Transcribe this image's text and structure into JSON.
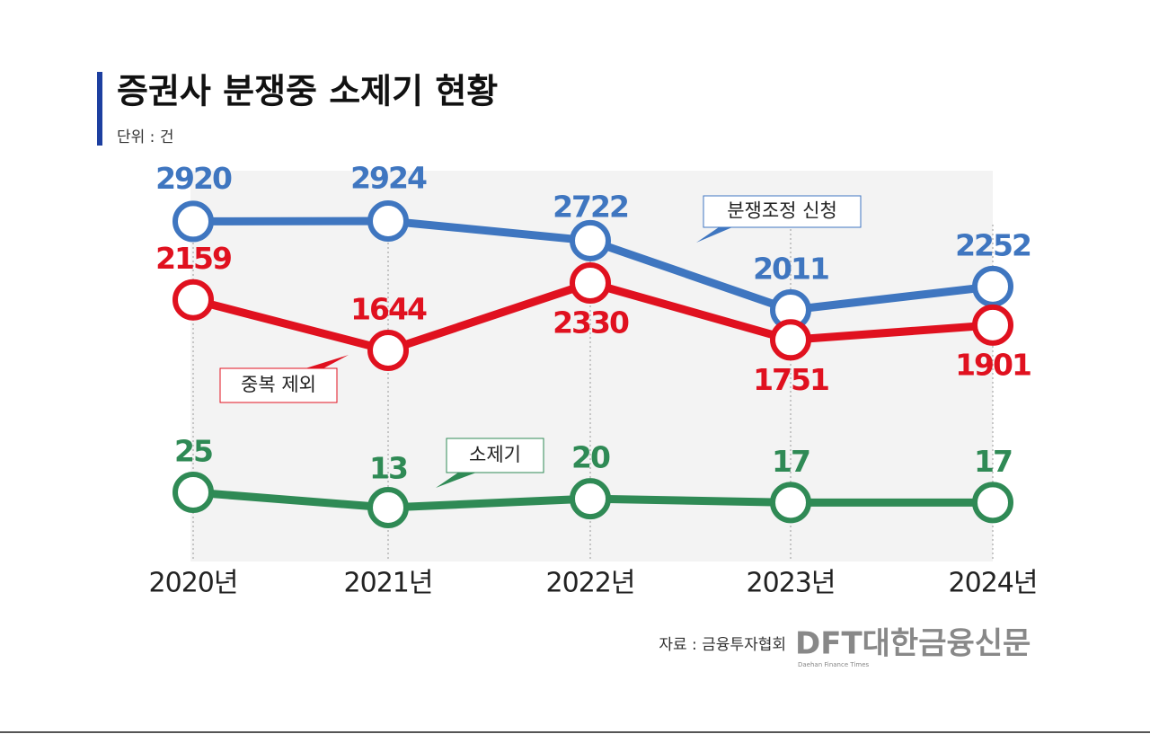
{
  "chart_data": {
    "type": "line",
    "title": "증권사 분쟁중 소제기 현황",
    "subtitle": "단위 : 건",
    "categories": [
      "2020년",
      "2021년",
      "2022년",
      "2023년",
      "2024년"
    ],
    "series": [
      {
        "name": "분쟁조정 신청",
        "color": "#3f76c0",
        "values": [
          2920,
          2924,
          2722,
          2011,
          2252
        ]
      },
      {
        "name": "중복 제외",
        "color": "#e0111f",
        "values": [
          2159,
          1644,
          2330,
          1751,
          1901
        ]
      },
      {
        "name": "소제기",
        "color": "#2f8a55",
        "values": [
          25,
          13,
          20,
          17,
          17
        ]
      }
    ],
    "source": "자료 : 금융투자협회",
    "logo": "DFT대한금융신문",
    "logo_subtitle": "Daehan Finance Times"
  }
}
